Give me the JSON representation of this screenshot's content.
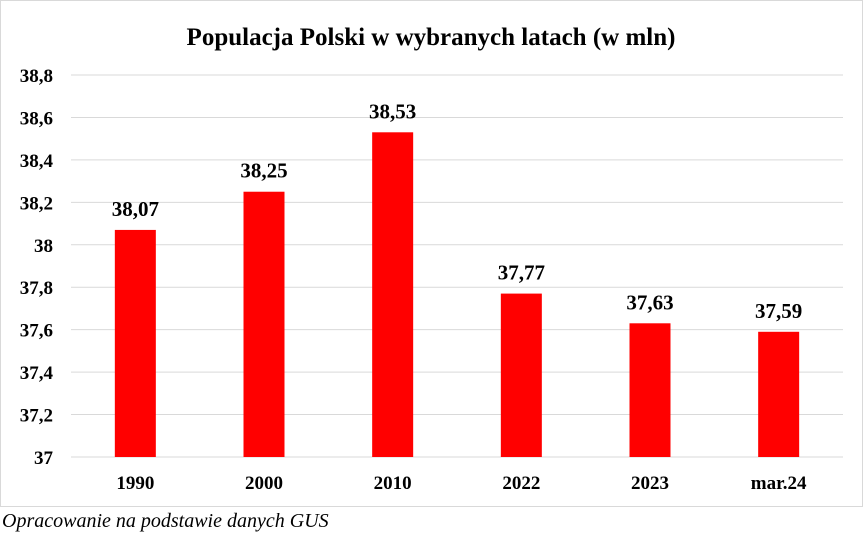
{
  "chart_data": {
    "type": "bar",
    "title": "Populacja Polski w wybranych latach (w mln)",
    "categories": [
      "1990",
      "2000",
      "2010",
      "2022",
      "2023",
      "mar.24"
    ],
    "values": [
      38.07,
      38.25,
      38.53,
      37.77,
      37.63,
      37.59
    ],
    "value_labels": [
      "38,07",
      "38,25",
      "38,53",
      "37,77",
      "37,63",
      "37,59"
    ],
    "y_ticks": [
      37,
      37.2,
      37.4,
      37.6,
      37.8,
      38,
      38.2,
      38.4,
      38.6,
      38.8
    ],
    "y_tick_labels": [
      "37",
      "37,2",
      "37,4",
      "37,6",
      "37,8",
      "38",
      "38,2",
      "38,4",
      "38,6",
      "38,8"
    ],
    "ylim": [
      37,
      38.8
    ],
    "xlabel": "",
    "ylabel": "",
    "grid": true,
    "legend": false,
    "bar_color": "#ff0000"
  },
  "source_note": "Opracowanie na podstawie danych GUS"
}
